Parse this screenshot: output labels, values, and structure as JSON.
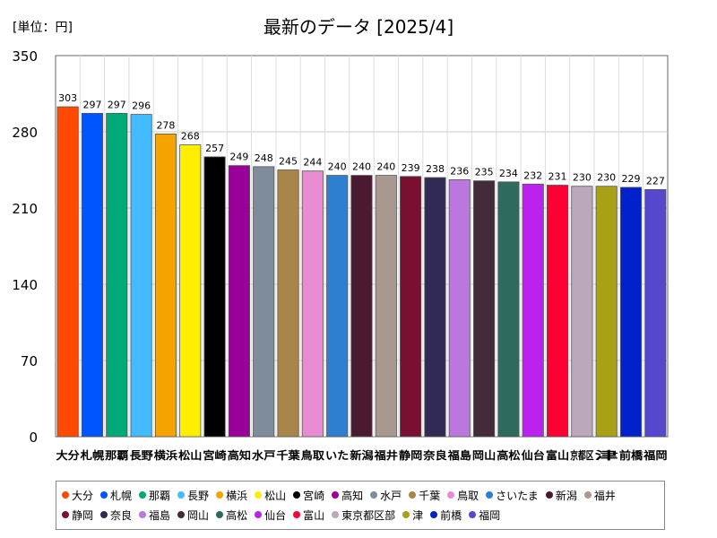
{
  "page": {
    "unit_label": "[単位：円]",
    "title": "最新のデータ [2025/4]"
  },
  "chart_data": {
    "type": "bar",
    "title": "最新のデータ [2025/4]",
    "ylabel": "[単位：円]",
    "xlabel": "",
    "ylim": [
      0,
      350
    ],
    "yticks": [
      0,
      70,
      140,
      210,
      280,
      350
    ],
    "legend_position": "bottom",
    "categories": [
      "大分",
      "札幌",
      "那覇",
      "長野",
      "横浜",
      "松山",
      "宮崎",
      "高知",
      "水戸",
      "千葉",
      "鳥取",
      "さいたま",
      "新潟",
      "福井",
      "静岡",
      "奈良",
      "福島",
      "岡山",
      "高松",
      "仙台",
      "富山",
      "東京都区部",
      "津",
      "前橋",
      "福岡"
    ],
    "axis_labels": [
      "大分",
      "札幌",
      "那覇",
      "長野",
      "横浜",
      "松山",
      "宮崎",
      "高知",
      "水戸",
      "千葉",
      "鳥取",
      "いた",
      "新潟",
      "福井",
      "静岡",
      "奈良",
      "福島",
      "岡山",
      "高松",
      "仙台",
      "富山",
      "京都区",
      "津",
      "前橋",
      "福岡"
    ],
    "values": [
      303,
      297,
      297,
      296,
      278,
      268,
      257,
      249,
      248,
      245,
      244,
      240,
      240,
      240,
      239,
      238,
      236,
      235,
      234,
      232,
      231,
      230,
      230,
      229,
      227
    ],
    "colors": [
      "#ff4a00",
      "#0055ff",
      "#00aa77",
      "#44bbff",
      "#f5a300",
      "#ffee00",
      "#000000",
      "#990099",
      "#7f8c99",
      "#a8864a",
      "#e88bd0",
      "#2f7fd0",
      "#4a1a30",
      "#a89890",
      "#7a1030",
      "#302a55",
      "#bb77dd",
      "#452a3a",
      "#2e6a5e",
      "#bb22ee",
      "#ff0033",
      "#bba8bb",
      "#a8a015",
      "#0022cc",
      "#5548cc"
    ]
  }
}
